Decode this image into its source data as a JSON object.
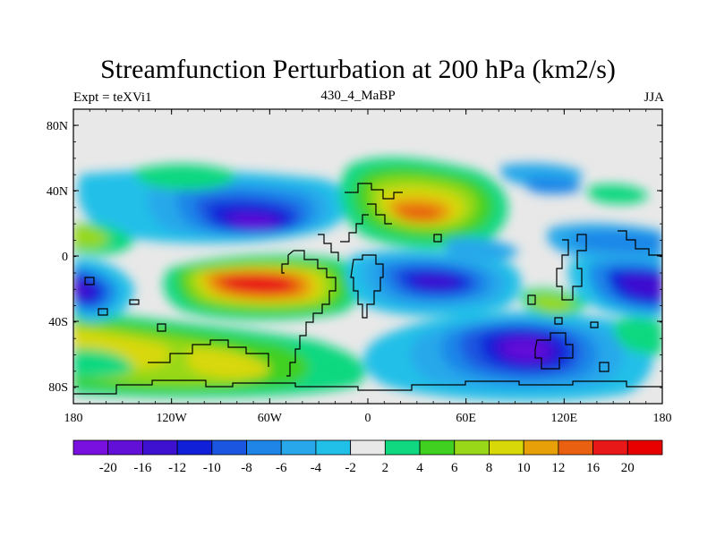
{
  "title": "Streamfunction Perturbation at 200 hPa (km2/s)",
  "subtitle_left": "Expt = teXVi1",
  "subtitle_center": "430_4_MaBP",
  "subtitle_right": "JJA",
  "y_tick_labels": [
    "80N",
    "40N",
    "0",
    "40S",
    "80S"
  ],
  "x_tick_labels": [
    "180",
    "120W",
    "60W",
    "0",
    "60E",
    "120E",
    "180"
  ],
  "colorbar": {
    "labels": [
      "-20",
      "-16",
      "-12",
      "-10",
      "-8",
      "-6",
      "-4",
      "-2",
      "2",
      "4",
      "6",
      "8",
      "10",
      "12",
      "16",
      "20"
    ],
    "colors": [
      "#7a10e0",
      "#6210d8",
      "#3e10d0",
      "#1020d8",
      "#1a56e0",
      "#1f86e8",
      "#28a8ea",
      "#20c0e8",
      "#e8e8e8",
      "#10d880",
      "#40d020",
      "#98d818",
      "#d8d808",
      "#e8a008",
      "#e86010",
      "#e81818",
      "#e80000"
    ]
  }
}
